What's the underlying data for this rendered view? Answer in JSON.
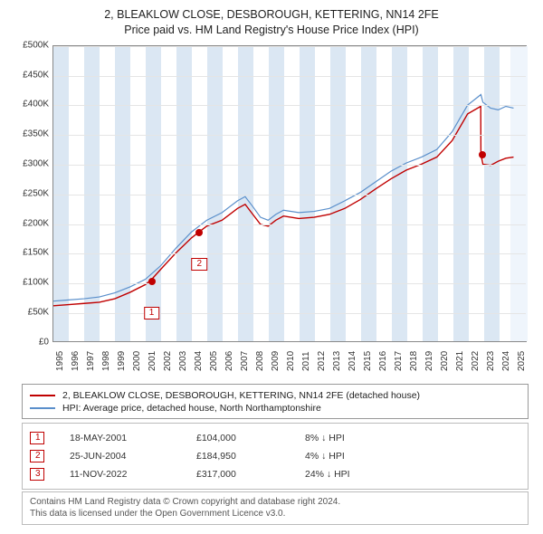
{
  "title": {
    "line1": "2, BLEAKLOW CLOSE, DESBOROUGH, KETTERING, NN14 2FE",
    "line2": "Price paid vs. HM Land Registry's House Price Index (HPI)"
  },
  "chart": {
    "type": "line",
    "background_color": "#ffffff",
    "grid_color": "#e5e5e5",
    "axis_color": "#888888",
    "band_color": "#dbe7f3",
    "recent_band_color": "#eff5fc",
    "xlim": [
      1995,
      2025.8
    ],
    "ylim": [
      0,
      500000
    ],
    "ytick_step": 50000,
    "ylabels": [
      "£0",
      "£50K",
      "£100K",
      "£150K",
      "£200K",
      "£250K",
      "£300K",
      "£350K",
      "£400K",
      "£450K",
      "£500K"
    ],
    "xticks": [
      1995,
      1996,
      1997,
      1998,
      1999,
      2000,
      2001,
      2002,
      2003,
      2004,
      2005,
      2006,
      2007,
      2008,
      2009,
      2010,
      2011,
      2012,
      2013,
      2014,
      2015,
      2016,
      2017,
      2018,
      2019,
      2020,
      2021,
      2022,
      2023,
      2024,
      2025
    ],
    "bands": [
      {
        "from": 1995,
        "to": 1996
      },
      {
        "from": 1997,
        "to": 1998
      },
      {
        "from": 1999,
        "to": 2000
      },
      {
        "from": 2001,
        "to": 2002
      },
      {
        "from": 2003,
        "to": 2004
      },
      {
        "from": 2005,
        "to": 2006
      },
      {
        "from": 2007,
        "to": 2008
      },
      {
        "from": 2009,
        "to": 2010
      },
      {
        "from": 2011,
        "to": 2012
      },
      {
        "from": 2013,
        "to": 2014
      },
      {
        "from": 2015,
        "to": 2016
      },
      {
        "from": 2017,
        "to": 2018
      },
      {
        "from": 2019,
        "to": 2020
      },
      {
        "from": 2021,
        "to": 2022
      },
      {
        "from": 2023,
        "to": 2024
      }
    ],
    "recent_band": {
      "from": 2024.7,
      "to": 2025.8
    },
    "series": [
      {
        "name": "property",
        "color": "#c00000",
        "width": 1.4,
        "data": [
          [
            1995,
            60000
          ],
          [
            1996,
            62000
          ],
          [
            1997,
            64000
          ],
          [
            1998,
            66000
          ],
          [
            1999,
            72000
          ],
          [
            2000,
            83000
          ],
          [
            2001,
            96000
          ],
          [
            2001.38,
            104000
          ],
          [
            2002,
            122000
          ],
          [
            2003,
            150000
          ],
          [
            2004,
            175000
          ],
          [
            2004.48,
            184950
          ],
          [
            2005,
            195000
          ],
          [
            2006,
            205000
          ],
          [
            2007,
            225000
          ],
          [
            2007.5,
            232000
          ],
          [
            2008,
            215000
          ],
          [
            2008.5,
            198000
          ],
          [
            2009,
            195000
          ],
          [
            2009.5,
            205000
          ],
          [
            2010,
            212000
          ],
          [
            2011,
            208000
          ],
          [
            2012,
            210000
          ],
          [
            2013,
            215000
          ],
          [
            2014,
            225000
          ],
          [
            2015,
            240000
          ],
          [
            2016,
            258000
          ],
          [
            2017,
            275000
          ],
          [
            2018,
            290000
          ],
          [
            2019,
            300000
          ],
          [
            2020,
            312000
          ],
          [
            2021,
            340000
          ],
          [
            2022,
            385000
          ],
          [
            2022.86,
            398000
          ],
          [
            2022.87,
            317000
          ],
          [
            2023,
            300000
          ],
          [
            2023.5,
            298000
          ],
          [
            2024,
            305000
          ],
          [
            2024.5,
            310000
          ],
          [
            2025,
            312000
          ]
        ]
      },
      {
        "name": "hpi",
        "color": "#5a8fcb",
        "width": 1.2,
        "data": [
          [
            1995,
            68000
          ],
          [
            1996,
            70000
          ],
          [
            1997,
            72000
          ],
          [
            1998,
            75000
          ],
          [
            1999,
            82000
          ],
          [
            2000,
            92000
          ],
          [
            2001,
            105000
          ],
          [
            2002,
            128000
          ],
          [
            2003,
            158000
          ],
          [
            2004,
            185000
          ],
          [
            2005,
            205000
          ],
          [
            2006,
            218000
          ],
          [
            2007,
            238000
          ],
          [
            2007.5,
            245000
          ],
          [
            2008,
            228000
          ],
          [
            2008.5,
            210000
          ],
          [
            2009,
            205000
          ],
          [
            2009.5,
            215000
          ],
          [
            2010,
            222000
          ],
          [
            2011,
            218000
          ],
          [
            2012,
            220000
          ],
          [
            2013,
            225000
          ],
          [
            2014,
            238000
          ],
          [
            2015,
            252000
          ],
          [
            2016,
            270000
          ],
          [
            2017,
            288000
          ],
          [
            2018,
            302000
          ],
          [
            2019,
            312000
          ],
          [
            2020,
            325000
          ],
          [
            2021,
            355000
          ],
          [
            2022,
            400000
          ],
          [
            2022.87,
            418000
          ],
          [
            2023,
            405000
          ],
          [
            2023.5,
            395000
          ],
          [
            2024,
            392000
          ],
          [
            2024.5,
            398000
          ],
          [
            2025,
            395000
          ]
        ]
      }
    ],
    "markers": [
      {
        "n": "1",
        "x": 2001.38,
        "y": 104000,
        "color": "#c00000",
        "label_dy": 28
      },
      {
        "n": "2",
        "x": 2004.48,
        "y": 184950,
        "color": "#c00000",
        "label_dy": 28
      },
      {
        "n": "3",
        "x": 2022.86,
        "y": 317000,
        "color": "#c00000",
        "label_dy": -205
      }
    ],
    "marker_color": "#c00000"
  },
  "legend": {
    "items": [
      {
        "color": "#c00000",
        "label": "2, BLEAKLOW CLOSE, DESBOROUGH, KETTERING, NN14 2FE (detached house)"
      },
      {
        "color": "#5a8fcb",
        "label": "HPI: Average price, detached house, North Northamptonshire"
      }
    ]
  },
  "events": [
    {
      "n": "1",
      "date": "18-MAY-2001",
      "price": "£104,000",
      "delta": "8% ↓ HPI"
    },
    {
      "n": "2",
      "date": "25-JUN-2004",
      "price": "£184,950",
      "delta": "4% ↓ HPI"
    },
    {
      "n": "3",
      "date": "11-NOV-2022",
      "price": "£317,000",
      "delta": "24% ↓ HPI"
    }
  ],
  "footer": {
    "line1": "Contains HM Land Registry data © Crown copyright and database right 2024.",
    "line2": "This data is licensed under the Open Government Licence v3.0."
  }
}
